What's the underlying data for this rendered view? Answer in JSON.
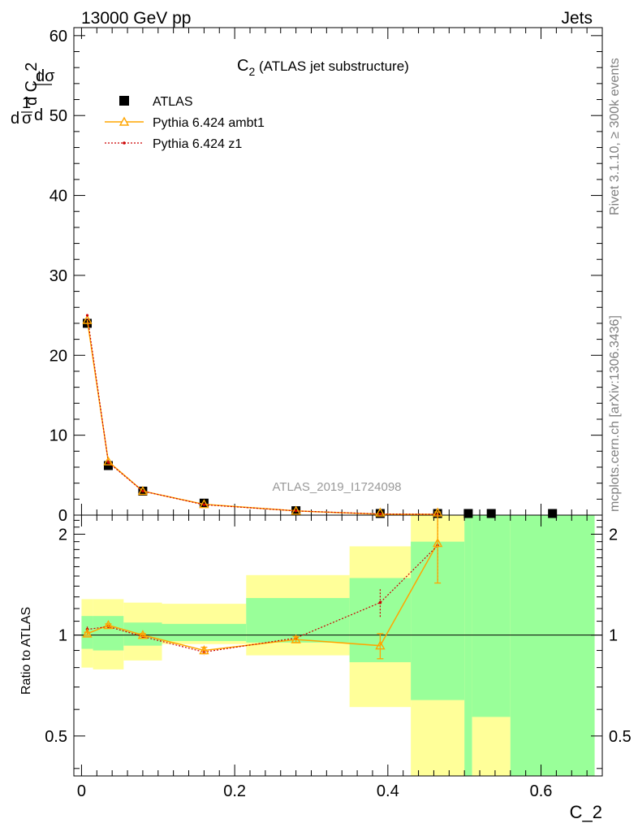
{
  "header": {
    "left": "13000 GeV pp",
    "right": "Jets"
  },
  "side_text": {
    "rivet": "Rivet 3.1.10, ≥ 300k events",
    "mcplots": "mcplots.cern.ch [arXiv:1306.3436]"
  },
  "watermark": "ATLAS_2019_I1724098",
  "colors": {
    "data": "#000000",
    "ambt1": "#ffa500",
    "z1": "#cc0000",
    "band_inner": "#99ff99",
    "band_outer": "#ffff99"
  },
  "chart_data": [
    {
      "type": "scatter",
      "panel": "main",
      "title": "C",
      "title_sub": "2",
      "title_suffix": " (ATLAS jet substructure)",
      "xlabel": "C_2",
      "ylabel_parts": [
        "d",
        "1",
        "σ",
        "d",
        "dσ",
        "d C_2"
      ],
      "xlim": [
        -0.01,
        0.68
      ],
      "ylim": [
        0,
        61
      ],
      "yticks": [
        0,
        10,
        20,
        30,
        40,
        50,
        60
      ],
      "xticks": [
        0,
        0.2,
        0.4,
        0.6
      ],
      "xtick_labels": [
        "0",
        "0.2",
        "0.4",
        "0.6"
      ],
      "legend_placement": "top-left",
      "series": [
        {
          "name": "ATLAS",
          "marker": "square",
          "x": [
            0.0075,
            0.035,
            0.08,
            0.16,
            0.28,
            0.39,
            0.465,
            0.505,
            0.535,
            0.615
          ],
          "y": [
            24.0,
            6.2,
            3.0,
            1.5,
            0.55,
            0.12,
            0.04,
            0.02,
            0.01,
            0.005
          ]
        },
        {
          "name": "Pythia 6.424 ambt1",
          "marker": "triangle",
          "x": [
            0.0075,
            0.035,
            0.08,
            0.16,
            0.28,
            0.39,
            0.465
          ],
          "y": [
            24.4,
            6.7,
            3.0,
            1.35,
            0.53,
            0.11,
            0.05
          ]
        },
        {
          "name": "Pythia 6.424 z1",
          "marker": "dot",
          "x": [
            0.0075,
            0.035,
            0.08,
            0.16,
            0.28,
            0.39,
            0.465
          ],
          "y": [
            25.0,
            6.6,
            3.0,
            1.3,
            0.53,
            0.14,
            0.05
          ]
        }
      ]
    },
    {
      "type": "scatter",
      "panel": "ratio",
      "ylabel": "Ratio to ATLAS",
      "xlim": [
        -0.01,
        0.68
      ],
      "ylim": [
        0.38,
        2.28
      ],
      "log_y": true,
      "yticks": [
        0.5,
        1,
        2
      ],
      "ytick_labels": [
        "0.5",
        "1",
        "2"
      ],
      "bands": [
        {
          "x": [
            0.0,
            0.015
          ],
          "inner": [
            0.91,
            1.14
          ],
          "outer": [
            0.8,
            1.28
          ]
        },
        {
          "x": [
            0.015,
            0.055
          ],
          "inner": [
            0.9,
            1.14
          ],
          "outer": [
            0.79,
            1.28
          ]
        },
        {
          "x": [
            0.055,
            0.105
          ],
          "inner": [
            0.93,
            1.09
          ],
          "outer": [
            0.84,
            1.25
          ]
        },
        {
          "x": [
            0.105,
            0.215
          ],
          "inner": [
            0.96,
            1.08
          ],
          "outer": [
            0.94,
            1.24
          ]
        },
        {
          "x": [
            0.215,
            0.35
          ],
          "inner": [
            0.95,
            1.29
          ],
          "outer": [
            0.87,
            1.51
          ]
        },
        {
          "x": [
            0.35,
            0.43
          ],
          "inner": [
            0.83,
            1.48
          ],
          "outer": [
            0.61,
            1.84
          ]
        },
        {
          "x": [
            0.43,
            0.5
          ],
          "inner": [
            0.64,
            1.9
          ],
          "outer": [
            0.35,
            2.3
          ]
        },
        {
          "x": [
            0.5,
            0.51
          ],
          "inner": [
            0.35,
            2.3
          ],
          "outer": [
            0.35,
            2.3
          ]
        },
        {
          "x": [
            0.51,
            0.56
          ],
          "inner": [
            0.57,
            2.3
          ],
          "outer": [
            0.35,
            2.3
          ]
        },
        {
          "x": [
            0.56,
            0.67
          ],
          "inner": [
            0.35,
            2.3
          ],
          "outer": [
            0.35,
            2.3
          ]
        }
      ],
      "series": [
        {
          "name": "Pythia 6.424 ambt1",
          "x": [
            0.0075,
            0.035,
            0.08,
            0.16,
            0.28,
            0.39,
            0.465
          ],
          "y": [
            1.01,
            1.07,
            1.0,
            0.9,
            0.97,
            0.93,
            1.88
          ],
          "err": [
            0.01,
            0.01,
            0.01,
            0.02,
            0.02,
            0.08,
            0.45
          ]
        },
        {
          "name": "Pythia 6.424 z1",
          "x": [
            0.0075,
            0.035,
            0.08,
            0.16,
            0.28,
            0.39,
            0.465
          ],
          "y": [
            1.04,
            1.06,
            0.99,
            0.89,
            0.98,
            1.25,
            1.85
          ],
          "err": [
            0.02,
            0.02,
            0.01,
            0.02,
            0.02,
            0.12,
            0.4
          ]
        }
      ]
    }
  ]
}
